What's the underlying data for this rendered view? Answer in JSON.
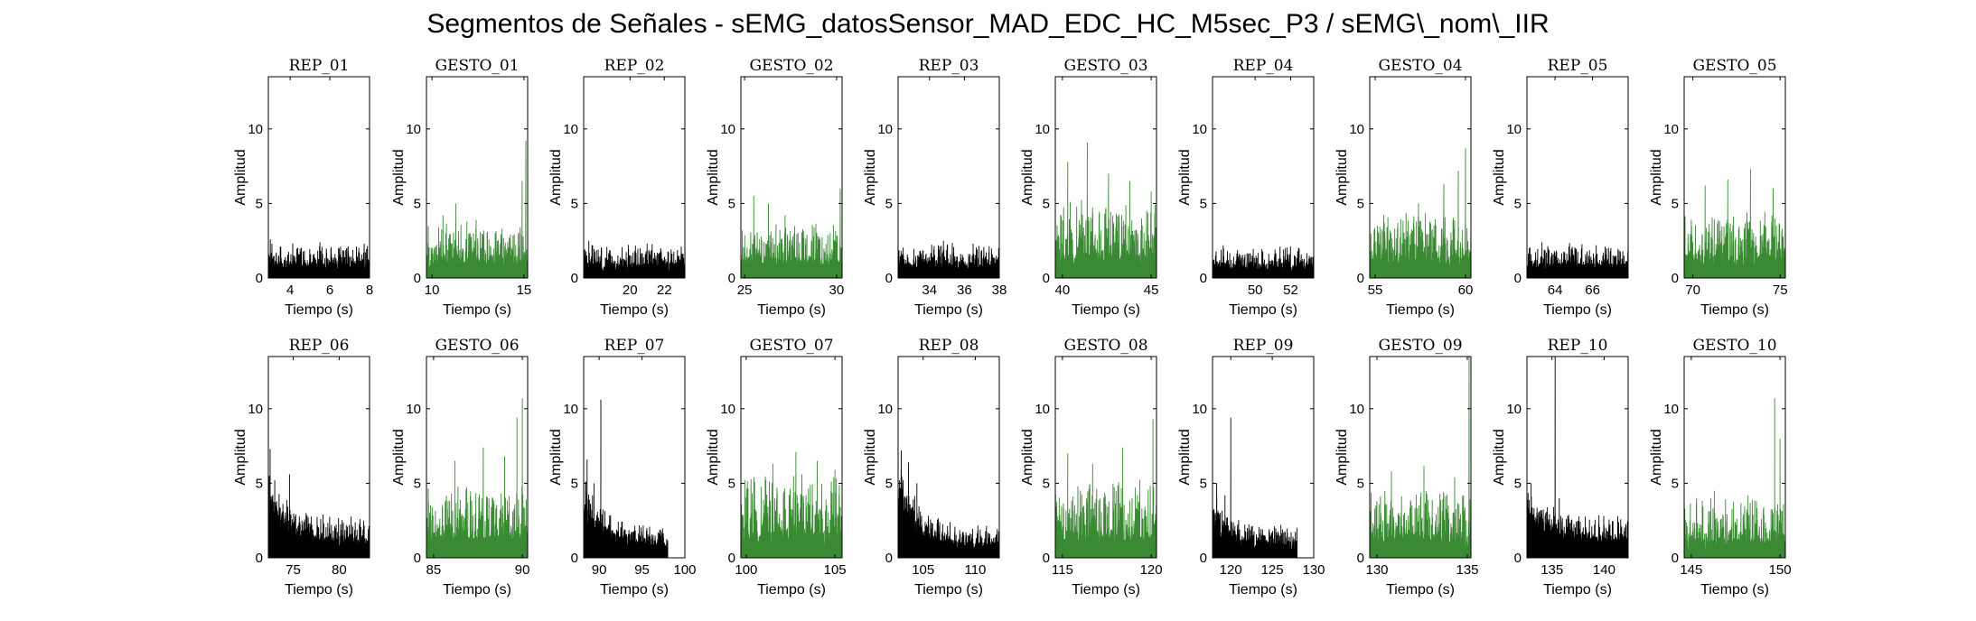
{
  "figure": {
    "title": "Segmentos de Señales - sEMG_datosSensor_MAD_EDC_HC_M5sec_P3 / sEMG\\_nom\\_IIR"
  },
  "colors": {
    "rep": "#000000",
    "gesto": "#3a8a33",
    "axis": "#000000"
  },
  "chart_data": [
    {
      "type": "area",
      "title": "REP_01",
      "xlabel": "Tiempo (s)",
      "ylabel": "Amplitud",
      "ylim": [
        0,
        13.5
      ],
      "xlim": [
        2.9,
        8
      ],
      "xticks": [
        4,
        6,
        8
      ],
      "yticks": [
        0,
        5,
        10
      ],
      "x_span": [
        2.9,
        8
      ],
      "baseline": 1.0,
      "noise": 0.9,
      "spikes": [
        {
          "x": 3.0,
          "y": 2.6
        },
        {
          "x": 5.5,
          "y": 2.4
        }
      ],
      "color": "rep"
    },
    {
      "type": "area",
      "title": "GESTO_01",
      "xlabel": "Tiempo (s)",
      "ylabel": "Amplitud",
      "ylim": [
        0,
        13.5
      ],
      "xlim": [
        9.7,
        15.2
      ],
      "xticks": [
        10,
        15
      ],
      "yticks": [
        0,
        5,
        10
      ],
      "x_span": [
        9.7,
        15.2
      ],
      "baseline": 1.3,
      "noise": 1.6,
      "spikes": [
        {
          "x": 10.6,
          "y": 4.2
        },
        {
          "x": 11.3,
          "y": 5.0
        },
        {
          "x": 12.4,
          "y": 3.9
        },
        {
          "x": 14.9,
          "y": 6.5
        },
        {
          "x": 15.1,
          "y": 9.2
        }
      ],
      "color": "gesto"
    },
    {
      "type": "area",
      "title": "REP_02",
      "xlabel": "Tiempo (s)",
      "ylabel": "Amplitud",
      "ylim": [
        0,
        13.5
      ],
      "xlim": [
        17.3,
        23.2
      ],
      "xticks": [
        20,
        22
      ],
      "yticks": [
        0,
        5,
        10
      ],
      "x_span": [
        17.3,
        23.2
      ],
      "baseline": 1.0,
      "noise": 0.9,
      "spikes": [
        {
          "x": 17.6,
          "y": 2.5
        },
        {
          "x": 21.0,
          "y": 2.3
        }
      ],
      "color": "rep"
    },
    {
      "type": "area",
      "title": "GESTO_02",
      "xlabel": "Tiempo (s)",
      "ylabel": "Amplitud",
      "ylim": [
        0,
        13.5
      ],
      "xlim": [
        24.8,
        30.3
      ],
      "xticks": [
        25,
        30
      ],
      "yticks": [
        0,
        5,
        10
      ],
      "x_span": [
        24.8,
        30.3
      ],
      "baseline": 1.3,
      "noise": 1.6,
      "spikes": [
        {
          "x": 25.5,
          "y": 5.5
        },
        {
          "x": 26.3,
          "y": 5.0
        },
        {
          "x": 27.2,
          "y": 4.2
        },
        {
          "x": 30.2,
          "y": 6.0
        }
      ],
      "color": "gesto"
    },
    {
      "type": "area",
      "title": "REP_03",
      "xlabel": "Tiempo (s)",
      "ylabel": "Amplitud",
      "ylim": [
        0,
        13.5
      ],
      "xlim": [
        32.2,
        38
      ],
      "xticks": [
        34,
        36,
        38
      ],
      "yticks": [
        0,
        5,
        10
      ],
      "x_span": [
        32.2,
        38
      ],
      "baseline": 1.0,
      "noise": 0.9,
      "spikes": [
        {
          "x": 34.8,
          "y": 2.5
        },
        {
          "x": 36.5,
          "y": 2.3
        }
      ],
      "color": "rep"
    },
    {
      "type": "area",
      "title": "GESTO_03",
      "xlabel": "Tiempo (s)",
      "ylabel": "Amplitud",
      "ylim": [
        0,
        13.5
      ],
      "xlim": [
        39.6,
        45.3
      ],
      "xticks": [
        40,
        45
      ],
      "yticks": [
        0,
        5,
        10
      ],
      "x_span": [
        39.6,
        45.3
      ],
      "baseline": 1.6,
      "noise": 2.4,
      "spikes": [
        {
          "x": 40.3,
          "y": 7.8
        },
        {
          "x": 41.4,
          "y": 9.1
        },
        {
          "x": 42.6,
          "y": 7.0
        },
        {
          "x": 43.8,
          "y": 6.5
        },
        {
          "x": 45.0,
          "y": 5.8
        }
      ],
      "color": "gesto"
    },
    {
      "type": "area",
      "title": "REP_04",
      "xlabel": "Tiempo (s)",
      "ylabel": "Amplitud",
      "ylim": [
        0,
        13.5
      ],
      "xlim": [
        47.6,
        53.3
      ],
      "xticks": [
        50,
        52
      ],
      "yticks": [
        0,
        5,
        10
      ],
      "x_span": [
        47.6,
        53.3
      ],
      "baseline": 1.0,
      "noise": 0.8,
      "spikes": [
        {
          "x": 48.2,
          "y": 2.2
        },
        {
          "x": 51.4,
          "y": 2.1
        }
      ],
      "color": "rep"
    },
    {
      "type": "area",
      "title": "GESTO_04",
      "xlabel": "Tiempo (s)",
      "ylabel": "Amplitud",
      "ylim": [
        0,
        13.5
      ],
      "xlim": [
        54.7,
        60.3
      ],
      "xticks": [
        55,
        60
      ],
      "yticks": [
        0,
        5,
        10
      ],
      "x_span": [
        54.7,
        60.3
      ],
      "baseline": 1.4,
      "noise": 2.0,
      "spikes": [
        {
          "x": 57.4,
          "y": 5.0
        },
        {
          "x": 58.8,
          "y": 6.3
        },
        {
          "x": 59.6,
          "y": 7.2
        },
        {
          "x": 60.0,
          "y": 8.7
        }
      ],
      "color": "gesto"
    },
    {
      "type": "area",
      "title": "REP_05",
      "xlabel": "Tiempo (s)",
      "ylabel": "Amplitud",
      "ylim": [
        0,
        13.5
      ],
      "xlim": [
        62.5,
        67.9
      ],
      "xticks": [
        64,
        66
      ],
      "yticks": [
        0,
        5,
        10
      ],
      "x_span": [
        62.5,
        67.9
      ],
      "baseline": 1.0,
      "noise": 0.9,
      "spikes": [
        {
          "x": 63.3,
          "y": 2.4
        },
        {
          "x": 66.2,
          "y": 2.2
        }
      ],
      "color": "rep"
    },
    {
      "type": "area",
      "title": "GESTO_05",
      "xlabel": "Tiempo (s)",
      "ylabel": "Amplitud",
      "ylim": [
        0,
        13.5
      ],
      "xlim": [
        69.5,
        75.3
      ],
      "xticks": [
        70,
        75
      ],
      "yticks": [
        0,
        5,
        10
      ],
      "x_span": [
        69.5,
        75.3
      ],
      "baseline": 1.4,
      "noise": 2.0,
      "spikes": [
        {
          "x": 70.7,
          "y": 6.2
        },
        {
          "x": 72.0,
          "y": 6.6
        },
        {
          "x": 73.3,
          "y": 7.3
        },
        {
          "x": 74.6,
          "y": 6.0
        }
      ],
      "color": "gesto"
    },
    {
      "type": "area",
      "title": "REP_06",
      "xlabel": "Tiempo (s)",
      "ylabel": "Amplitud",
      "ylim": [
        0,
        13.5
      ],
      "xlim": [
        72.3,
        83.3
      ],
      "xticks": [
        75,
        80
      ],
      "yticks": [
        0,
        5,
        10
      ],
      "x_span": [
        72.3,
        83.3
      ],
      "baseline": 1.2,
      "noise": 1.0,
      "decay": {
        "amp": 3.0,
        "tau": 2.5
      },
      "spikes": [
        {
          "x": 72.5,
          "y": 7.3
        },
        {
          "x": 73.0,
          "y": 5.2
        },
        {
          "x": 74.6,
          "y": 5.6
        }
      ],
      "color": "rep"
    },
    {
      "type": "area",
      "title": "GESTO_06",
      "xlabel": "Tiempo (s)",
      "ylabel": "Amplitud",
      "ylim": [
        0,
        13.5
      ],
      "xlim": [
        84.6,
        90.3
      ],
      "xticks": [
        85,
        90
      ],
      "yticks": [
        0,
        5,
        10
      ],
      "x_span": [
        84.6,
        90.3
      ],
      "baseline": 1.5,
      "noise": 2.2,
      "spikes": [
        {
          "x": 86.2,
          "y": 6.5
        },
        {
          "x": 87.8,
          "y": 7.4
        },
        {
          "x": 89.0,
          "y": 6.8
        },
        {
          "x": 89.7,
          "y": 9.4
        },
        {
          "x": 90.0,
          "y": 10.7
        }
      ],
      "color": "gesto"
    },
    {
      "type": "area",
      "title": "REP_07",
      "xlabel": "Tiempo (s)",
      "ylabel": "Amplitud",
      "ylim": [
        0,
        13.5
      ],
      "xlim": [
        88.2,
        100
      ],
      "xticks": [
        90,
        95,
        100
      ],
      "yticks": [
        0,
        5,
        10
      ],
      "x_span": [
        88.2,
        98.0
      ],
      "baseline": 1.0,
      "noise": 0.8,
      "decay": {
        "amp": 3.5,
        "tau": 2.0
      },
      "spikes": [
        {
          "x": 88.6,
          "y": 6.6
        },
        {
          "x": 90.2,
          "y": 10.6
        },
        {
          "x": 89.4,
          "y": 5.0
        }
      ],
      "color": "rep"
    },
    {
      "type": "area",
      "title": "GESTO_07",
      "xlabel": "Tiempo (s)",
      "ylabel": "Amplitud",
      "ylim": [
        0,
        13.5
      ],
      "xlim": [
        99.7,
        105.4
      ],
      "xticks": [
        100,
        105
      ],
      "yticks": [
        0,
        5,
        10
      ],
      "x_span": [
        99.7,
        105.4
      ],
      "baseline": 1.8,
      "noise": 2.4,
      "spikes": [
        {
          "x": 101.5,
          "y": 6.3
        },
        {
          "x": 102.8,
          "y": 7.1
        },
        {
          "x": 104.0,
          "y": 6.5
        },
        {
          "x": 105.0,
          "y": 5.9
        }
      ],
      "color": "gesto"
    },
    {
      "type": "area",
      "title": "REP_08",
      "xlabel": "Tiempo (s)",
      "ylabel": "Amplitud",
      "ylim": [
        0,
        13.5
      ],
      "xlim": [
        102.6,
        112.3
      ],
      "xticks": [
        105,
        110
      ],
      "yticks": [
        0,
        5,
        10
      ],
      "x_span": [
        102.6,
        112.3
      ],
      "baseline": 1.0,
      "noise": 0.8,
      "decay": {
        "amp": 4.0,
        "tau": 2.0
      },
      "spikes": [
        {
          "x": 102.9,
          "y": 7.2
        },
        {
          "x": 103.6,
          "y": 6.4
        },
        {
          "x": 104.4,
          "y": 5.0
        }
      ],
      "color": "rep"
    },
    {
      "type": "area",
      "title": "GESTO_08",
      "xlabel": "Tiempo (s)",
      "ylabel": "Amplitud",
      "ylim": [
        0,
        13.5
      ],
      "xlim": [
        114.6,
        120.3
      ],
      "xticks": [
        115,
        120
      ],
      "yticks": [
        0,
        5,
        10
      ],
      "x_span": [
        114.6,
        120.3
      ],
      "baseline": 1.7,
      "noise": 2.4,
      "spikes": [
        {
          "x": 115.3,
          "y": 7.0
        },
        {
          "x": 116.7,
          "y": 6.3
        },
        {
          "x": 118.4,
          "y": 7.4
        },
        {
          "x": 120.1,
          "y": 9.3
        }
      ],
      "color": "gesto"
    },
    {
      "type": "area",
      "title": "REP_09",
      "xlabel": "Tiempo (s)",
      "ylabel": "Amplitud",
      "ylim": [
        0,
        13.5
      ],
      "xlim": [
        117.8,
        130
      ],
      "xticks": [
        120,
        125,
        130
      ],
      "yticks": [
        0,
        5,
        10
      ],
      "x_span": [
        117.8,
        128.0
      ],
      "baseline": 1.0,
      "noise": 0.8,
      "decay": {
        "amp": 2.5,
        "tau": 2.0
      },
      "spikes": [
        {
          "x": 118.3,
          "y": 5.0
        },
        {
          "x": 120.0,
          "y": 9.4
        },
        {
          "x": 119.3,
          "y": 4.2
        }
      ],
      "color": "rep"
    },
    {
      "type": "area",
      "title": "GESTO_09",
      "xlabel": "Tiempo (s)",
      "ylabel": "Amplitud",
      "ylim": [
        0,
        13.5
      ],
      "xlim": [
        129.6,
        135.2
      ],
      "xticks": [
        130,
        135
      ],
      "yticks": [
        0,
        5,
        10
      ],
      "x_span": [
        129.6,
        135.2
      ],
      "baseline": 1.5,
      "noise": 2.0,
      "spikes": [
        {
          "x": 130.8,
          "y": 5.8
        },
        {
          "x": 132.6,
          "y": 6.2
        },
        {
          "x": 134.3,
          "y": 5.4
        },
        {
          "x": 135.1,
          "y": 13.5
        }
      ],
      "color": "gesto"
    },
    {
      "type": "area",
      "title": "REP_10",
      "xlabel": "Tiempo (s)",
      "ylabel": "Amplitud",
      "ylim": [
        0,
        13.5
      ],
      "xlim": [
        132.6,
        142.3
      ],
      "xticks": [
        135,
        140
      ],
      "yticks": [
        0,
        5,
        10
      ],
      "x_span": [
        132.6,
        142.3
      ],
      "baseline": 1.4,
      "noise": 1.0,
      "decay": {
        "amp": 2.0,
        "tau": 3.0
      },
      "spikes": [
        {
          "x": 133.0,
          "y": 5.0
        },
        {
          "x": 135.3,
          "y": 13.5
        },
        {
          "x": 135.7,
          "y": 4.0
        }
      ],
      "color": "rep"
    },
    {
      "type": "area",
      "title": "GESTO_10",
      "xlabel": "Tiempo (s)",
      "ylabel": "Amplitud",
      "ylim": [
        0,
        13.5
      ],
      "xlim": [
        144.6,
        150.3
      ],
      "xticks": [
        145,
        150
      ],
      "yticks": [
        0,
        5,
        10
      ],
      "x_span": [
        144.6,
        150.3
      ],
      "baseline": 1.3,
      "noise": 1.8,
      "spikes": [
        {
          "x": 146.3,
          "y": 4.5
        },
        {
          "x": 148.2,
          "y": 4.2
        },
        {
          "x": 149.7,
          "y": 10.7
        },
        {
          "x": 150.0,
          "y": 8.0
        }
      ],
      "color": "gesto"
    }
  ]
}
